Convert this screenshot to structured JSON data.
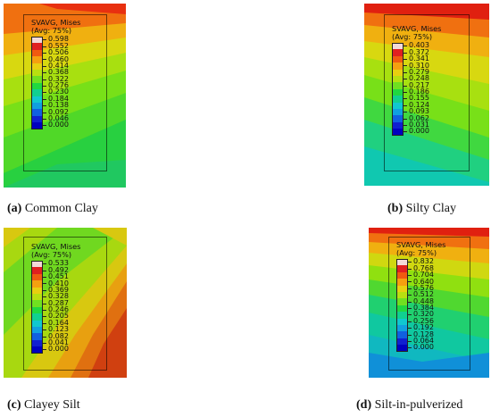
{
  "panels": [
    {
      "legend_title_1": "SVAVG, Mises",
      "legend_title_2": "(Avg: 75%)",
      "values": [
        "0.598",
        "0.552",
        "0.506",
        "0.460",
        "0.414",
        "0.368",
        "0.322",
        "0.276",
        "0.230",
        "0.184",
        "0.138",
        "0.092",
        "0.046",
        "0.000"
      ],
      "caption_letter": "(a)",
      "caption_text": " Common Clay"
    },
    {
      "legend_title_1": "SVAVG, Mises",
      "legend_title_2": "(Avg: 75%)",
      "values": [
        "0.403",
        "0.372",
        "0.341",
        "0.310",
        "0.279",
        "0.248",
        "0.217",
        "0.186",
        "0.155",
        "0.124",
        "0.093",
        "0.062",
        "0.031",
        "0.000"
      ],
      "caption_letter": "(b)",
      "caption_text": " Silty Clay"
    },
    {
      "legend_title_1": "SVAVG, Mises",
      "legend_title_2": "(Avg: 75%)",
      "values": [
        "0.533",
        "0.492",
        "0.451",
        "0.410",
        "0.369",
        "0.328",
        "0.287",
        "0.246",
        "0.205",
        "0.164",
        "0.123",
        "0.082",
        "0.041",
        "0.000"
      ],
      "caption_letter": "(c)",
      "caption_text": " Clayey Silt"
    },
    {
      "legend_title_1": "SVAVG, Mises",
      "legend_title_2": "(Avg: 75%)",
      "values": [
        "0.832",
        "0.768",
        "0.704",
        "0.640",
        "0.576",
        "0.512",
        "0.448",
        "0.384",
        "0.320",
        "0.256",
        "0.192",
        "0.128",
        "0.064",
        "0.000"
      ],
      "caption_letter": "(d)",
      "caption_text": " Silt-in-pulverized"
    }
  ],
  "colorscale": [
    "#f2d9d9",
    "#e02020",
    "#f05a10",
    "#f5a010",
    "#e8d010",
    "#b8e010",
    "#70e020",
    "#20d840",
    "#10d090",
    "#10c8d0",
    "#10a0e0",
    "#1060e0",
    "#1020d0",
    "#0000c0"
  ]
}
